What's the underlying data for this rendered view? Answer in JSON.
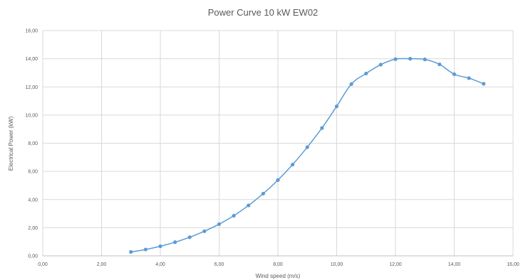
{
  "chart_data": {
    "type": "line",
    "title": "Power Curve 10 kW  EW02",
    "xlabel": "Wind speed (m/s)",
    "ylabel": "Electrical Power (kW)",
    "xlim": [
      0,
      16
    ],
    "ylim": [
      0,
      16
    ],
    "x_ticks": [
      "0,00",
      "2,00",
      "4,00",
      "6,00",
      "8,00",
      "10,00",
      "12,00",
      "14,00",
      "16,00"
    ],
    "y_ticks": [
      "0,00",
      "2,00",
      "4,00",
      "6,00",
      "8,00",
      "10,00",
      "12,00",
      "14,00",
      "16,00"
    ],
    "grid": true,
    "legend": "none",
    "series": [
      {
        "color": "#5b9bd5",
        "x": [
          3.0,
          3.5,
          4.0,
          4.5,
          5.0,
          5.5,
          6.0,
          6.5,
          7.0,
          7.5,
          8.0,
          8.5,
          9.0,
          9.5,
          10.0,
          10.5,
          11.0,
          11.5,
          12.0,
          12.5,
          13.0,
          13.5,
          14.0,
          14.5,
          15.0
        ],
        "y": [
          0.28,
          0.45,
          0.68,
          0.97,
          1.32,
          1.75,
          2.25,
          2.85,
          3.58,
          4.42,
          5.38,
          6.48,
          7.72,
          9.08,
          10.62,
          12.2,
          12.95,
          13.58,
          13.97,
          14.0,
          13.95,
          13.6,
          12.9,
          12.62,
          12.22
        ]
      }
    ]
  }
}
